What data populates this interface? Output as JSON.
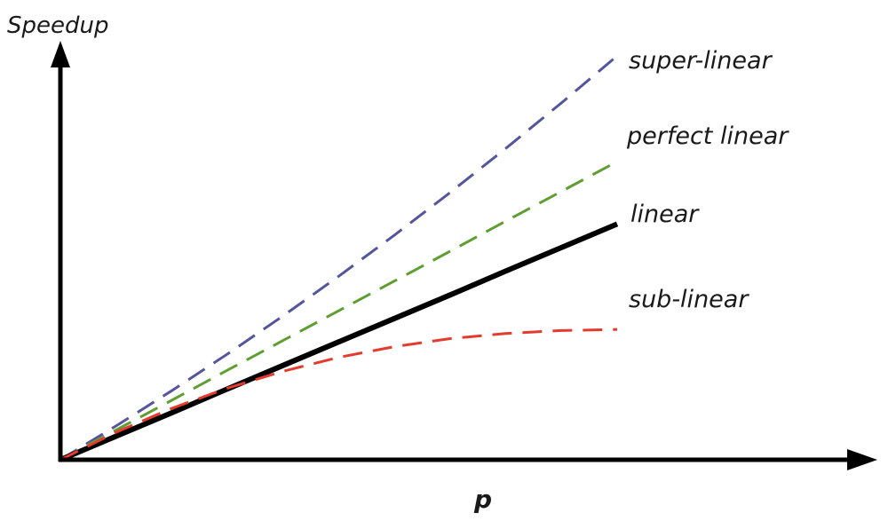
{
  "chart_data": {
    "type": "line",
    "title": "",
    "xlabel": "p",
    "ylabel": "Speedup",
    "grid": false,
    "legend": "inline-right",
    "x": [
      0,
      0.1,
      0.2,
      0.3,
      0.4,
      0.5,
      0.6,
      0.7,
      0.8,
      0.9,
      1.0
    ],
    "xlim": [
      0,
      1.45
    ],
    "ylim": [
      0,
      1.0
    ],
    "series": [
      {
        "name": "super-linear",
        "color": "#55559b",
        "dash": "dashed",
        "values": [
          0,
          0.092,
          0.188,
          0.288,
          0.392,
          0.5,
          0.612,
          0.728,
          0.848,
          0.972,
          1.1
        ]
      },
      {
        "name": "perfect linear",
        "color": "#5f9e32",
        "dash": "dashed",
        "values": [
          0,
          0.081,
          0.162,
          0.244,
          0.325,
          0.406,
          0.487,
          0.568,
          0.65,
          0.731,
          0.812
        ]
      },
      {
        "name": "linear",
        "color": "#000000",
        "dash": "solid",
        "values": [
          0,
          0.064,
          0.128,
          0.193,
          0.257,
          0.321,
          0.385,
          0.449,
          0.514,
          0.578,
          0.642
        ]
      },
      {
        "name": "sub-linear",
        "color": "#e33b2e",
        "dash": "dashed",
        "values": [
          0,
          0.075,
          0.14,
          0.195,
          0.241,
          0.279,
          0.308,
          0.33,
          0.344,
          0.352,
          0.355
        ]
      }
    ]
  }
}
